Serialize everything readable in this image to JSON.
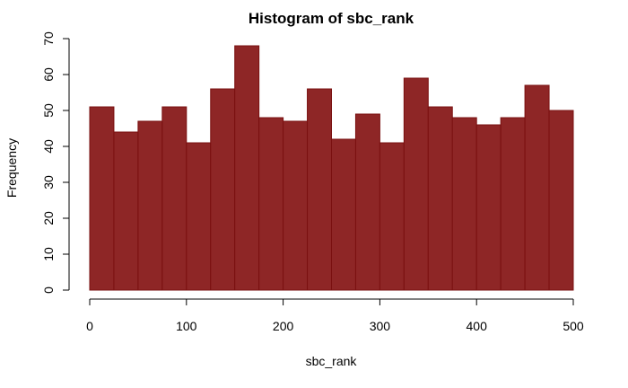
{
  "chart_data": {
    "type": "bar",
    "title": "Histogram of sbc_rank",
    "xlabel": "sbc_rank",
    "ylabel": "Frequency",
    "bin_edges": [
      0,
      25,
      50,
      75,
      100,
      125,
      150,
      175,
      200,
      225,
      250,
      275,
      300,
      325,
      350,
      375,
      400,
      425,
      450,
      475,
      500
    ],
    "values": [
      51,
      44,
      47,
      51,
      41,
      56,
      68,
      48,
      47,
      56,
      42,
      49,
      41,
      59,
      51,
      48,
      46,
      48,
      57,
      50
    ],
    "xlim": [
      0,
      500
    ],
    "ylim": [
      0,
      70
    ],
    "xticks": [
      0,
      100,
      200,
      300,
      400,
      500
    ],
    "yticks": [
      0,
      10,
      20,
      30,
      40,
      50,
      60,
      70
    ],
    "grid": false,
    "colors": {
      "bar_fill": "#8e2626",
      "bar_border": "#7a1010"
    }
  }
}
